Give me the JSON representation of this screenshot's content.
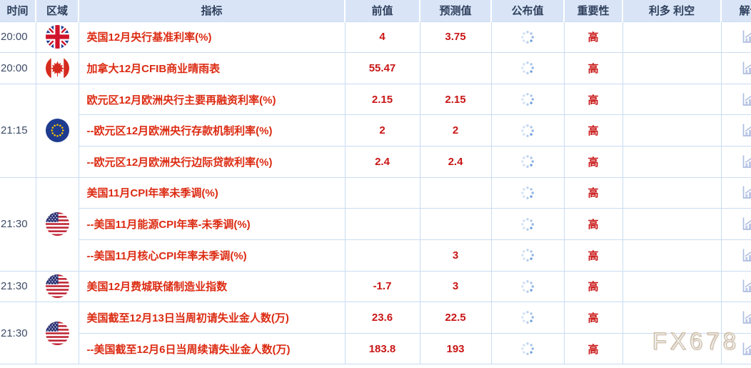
{
  "watermark": "FX678",
  "colors": {
    "header_bg": "#d9e5f7",
    "header_text": "#2f3f5c",
    "border": "#c9dcf3",
    "row_bg": "#ffffff",
    "time_text": "#3d4c66",
    "indicator_red": "#dc2b12",
    "value_red": "#c91616",
    "importance_red": "#c91616",
    "spinner_blue": "#6f9ede",
    "icon_blue": "#aebde0",
    "watermark_tan": "#cfbfa8"
  },
  "table": {
    "headers": [
      "时间",
      "区域",
      "指标",
      "前值",
      "预测值",
      "公布值",
      "重要性",
      "利多 利空",
      "解读"
    ],
    "groups": [
      {
        "time": "20:00",
        "region": "uk",
        "region_name": "英国",
        "rows": [
          {
            "indicator": "英国12月央行基准利率(%)",
            "previous": "4",
            "forecast": "3.75",
            "published_status": "loading",
            "importance": "高",
            "bullish_bearish": "",
            "interpretation_icon": "chart-icon"
          }
        ]
      },
      {
        "time": "20:00",
        "region": "canada",
        "region_name": "加拿大",
        "rows": [
          {
            "indicator": "加拿大12月CFIB商业晴雨表",
            "previous": "55.47",
            "forecast": "",
            "published_status": "loading",
            "importance": "高",
            "bullish_bearish": "",
            "interpretation_icon": "chart-icon"
          }
        ]
      },
      {
        "time": "21:15",
        "region": "eu",
        "region_name": "欧元区",
        "rows": [
          {
            "indicator": "欧元区12月欧洲央行主要再融资利率(%)",
            "previous": "2.15",
            "forecast": "2.15",
            "published_status": "loading",
            "importance": "高",
            "bullish_bearish": "",
            "interpretation_icon": "chart-icon"
          },
          {
            "indicator": "--欧元区12月欧洲央行存款机制利率(%)",
            "previous": "2",
            "forecast": "2",
            "published_status": "loading",
            "importance": "高",
            "bullish_bearish": "",
            "interpretation_icon": "chart-icon"
          },
          {
            "indicator": "--欧元区12月欧洲央行边际贷款利率(%)",
            "previous": "2.4",
            "forecast": "2.4",
            "published_status": "loading",
            "importance": "高",
            "bullish_bearish": "",
            "interpretation_icon": "chart-icon"
          }
        ]
      },
      {
        "time": "21:30",
        "region": "us",
        "region_name": "美国",
        "rows": [
          {
            "indicator": "美国11月CPI年率未季调(%)",
            "previous": "",
            "forecast": "",
            "published_status": "loading",
            "importance": "高",
            "bullish_bearish": "",
            "interpretation_icon": "chart-icon"
          },
          {
            "indicator": "--美国11月能源CPI年率-未季调(%)",
            "previous": "",
            "forecast": "",
            "published_status": "loading",
            "importance": "高",
            "bullish_bearish": "",
            "interpretation_icon": "chart-icon"
          },
          {
            "indicator": "--美国11月核心CPI年率未季调(%)",
            "previous": "",
            "forecast": "3",
            "published_status": "loading",
            "importance": "高",
            "bullish_bearish": "",
            "interpretation_icon": "chart-icon"
          }
        ]
      },
      {
        "time": "21:30",
        "region": "us",
        "region_name": "美国",
        "rows": [
          {
            "indicator": "美国12月费城联储制造业指数",
            "previous": "-1.7",
            "forecast": "3",
            "published_status": "loading",
            "importance": "高",
            "bullish_bearish": "",
            "interpretation_icon": "chart-icon"
          }
        ]
      },
      {
        "time": "21:30",
        "region": "us",
        "region_name": "美国",
        "rows": [
          {
            "indicator": "美国截至12月13日当周初请失业金人数(万)",
            "previous": "23.6",
            "forecast": "22.5",
            "published_status": "loading",
            "importance": "高",
            "bullish_bearish": "",
            "interpretation_icon": "chart-icon"
          },
          {
            "indicator": "--美国截至12月6日当周续请失业金人数(万)",
            "previous": "183.8",
            "forecast": "193",
            "published_status": "loading",
            "importance": "高",
            "bullish_bearish": "",
            "interpretation_icon": "chart-icon"
          }
        ]
      }
    ]
  }
}
